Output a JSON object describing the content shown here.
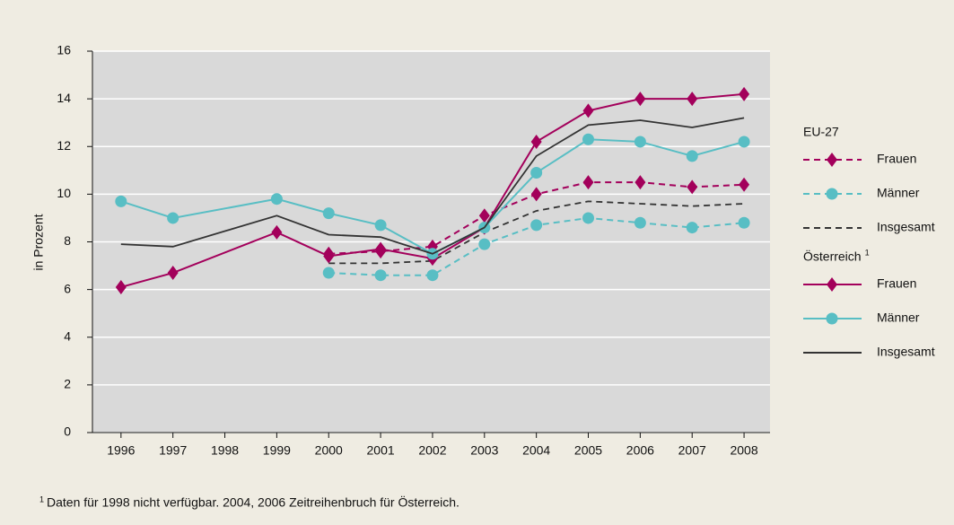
{
  "chart_data": {
    "type": "line",
    "y_label": "in Prozent",
    "ylim": [
      0,
      16
    ],
    "yticks": [
      0,
      2,
      4,
      6,
      8,
      10,
      12,
      14,
      16
    ],
    "xlim": [
      1995.45,
      2008.5
    ],
    "xticks": [
      1996,
      1997,
      1998,
      1999,
      2000,
      2001,
      2002,
      2003,
      2004,
      2005,
      2006,
      2007,
      2008
    ],
    "grid": true,
    "legend": "right",
    "series_groups": [
      {
        "name": "EU-27",
        "dashed": true,
        "series": [
          {
            "name": "Frauen",
            "color": "#a3005b",
            "marker": "diamond",
            "x": [
              2000,
              2001,
              2002,
              2003,
              2004,
              2005,
              2006,
              2007,
              2008
            ],
            "values": [
              7.5,
              7.6,
              7.8,
              9.1,
              10.0,
              10.5,
              10.5,
              10.3,
              10.4
            ]
          },
          {
            "name": "Männer",
            "color": "#58bec4",
            "marker": "circle",
            "x": [
              2000,
              2001,
              2002,
              2003,
              2004,
              2005,
              2006,
              2007,
              2008
            ],
            "values": [
              6.7,
              6.6,
              6.6,
              7.9,
              8.7,
              9.0,
              8.8,
              8.6,
              8.8
            ]
          },
          {
            "name": "Insgesamt",
            "color": "#333333",
            "marker": null,
            "x": [
              2000,
              2001,
              2002,
              2003,
              2004,
              2005,
              2006,
              2007,
              2008
            ],
            "values": [
              7.1,
              7.1,
              7.2,
              8.4,
              9.3,
              9.7,
              9.6,
              9.5,
              9.6
            ]
          }
        ]
      },
      {
        "name": "Österreich",
        "footnote_mark": "1",
        "dashed": false,
        "series": [
          {
            "name": "Frauen",
            "color": "#a3005b",
            "marker": "diamond",
            "x": [
              1996,
              1997,
              1999,
              2000,
              2001,
              2002,
              2003,
              2004,
              2005,
              2006,
              2007,
              2008
            ],
            "values": [
              6.1,
              6.7,
              8.4,
              7.4,
              7.7,
              7.3,
              8.6,
              12.2,
              13.5,
              14.0,
              14.0,
              14.2
            ]
          },
          {
            "name": "Männer",
            "color": "#58bec4",
            "marker": "circle",
            "x": [
              1996,
              1997,
              1999,
              2000,
              2001,
              2002,
              2003,
              2004,
              2005,
              2006,
              2007,
              2008
            ],
            "values": [
              9.7,
              9.0,
              9.8,
              9.2,
              8.7,
              7.5,
              8.6,
              10.9,
              12.3,
              12.2,
              11.6,
              12.2
            ]
          },
          {
            "name": "Insgesamt",
            "color": "#333333",
            "marker": null,
            "x": [
              1996,
              1997,
              1999,
              2000,
              2001,
              2002,
              2003,
              2004,
              2005,
              2006,
              2007,
              2008
            ],
            "values": [
              7.9,
              7.8,
              9.1,
              8.3,
              8.2,
              7.5,
              8.6,
              11.6,
              12.9,
              13.1,
              12.8,
              13.2
            ]
          }
        ]
      }
    ],
    "footnote": {
      "mark": "1",
      "text": "Daten für 1998 nicht verfügbar. 2004, 2006 Zeitreihenbruch für Österreich."
    }
  }
}
